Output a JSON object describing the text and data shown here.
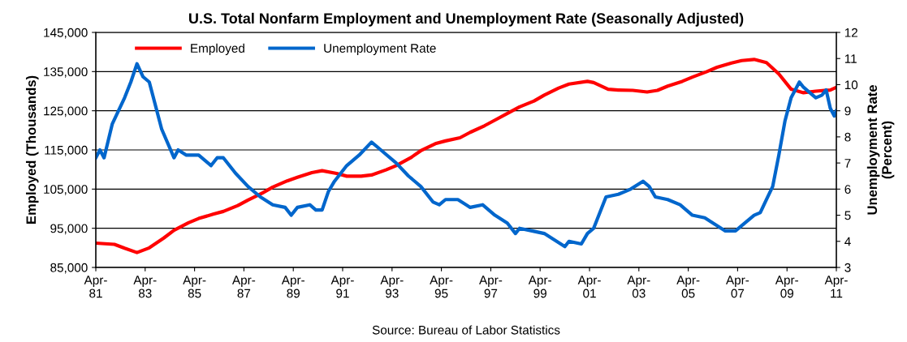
{
  "chart_data": {
    "type": "line",
    "title": "U.S. Total Nonfarm Employment and Unemployment Rate (Seasonally Adjusted)",
    "ylabel": "Employed (Thousands)",
    "y2label": "Unemployment Rate\n(Percent)",
    "annotations": [
      "Source: Bureau of Labor Statistics"
    ],
    "series": [
      {
        "name": "Employed",
        "color": "#ff0000",
        "x": [
          "1981-04",
          "1982-01",
          "1982-06",
          "1982-12",
          "1983-06",
          "1984-01",
          "1984-06",
          "1985-01",
          "1985-06",
          "1986-01",
          "1986-06",
          "1987-01",
          "1987-06",
          "1988-01",
          "1988-06",
          "1989-01",
          "1989-06",
          "1990-01",
          "1990-06",
          "1991-01",
          "1991-06",
          "1992-01",
          "1992-06",
          "1993-01",
          "1993-06",
          "1994-01",
          "1994-06",
          "1995-01",
          "1995-06",
          "1996-01",
          "1996-06",
          "1997-01",
          "1997-06",
          "1998-01",
          "1998-06",
          "1999-01",
          "1999-06",
          "2000-01",
          "2000-06",
          "2001-03",
          "2001-06",
          "2002-01",
          "2002-06",
          "2003-01",
          "2003-08",
          "2004-01",
          "2004-06",
          "2005-01",
          "2005-06",
          "2006-01",
          "2006-06",
          "2007-01",
          "2007-06",
          "2007-12",
          "2008-06",
          "2008-12",
          "2009-06",
          "2009-12",
          "2010-06",
          "2011-01",
          "2011-04"
        ],
        "values": [
          91200,
          90900,
          89900,
          88800,
          90000,
          92500,
          94500,
          96400,
          97500,
          98600,
          99300,
          100800,
          102200,
          104000,
          105500,
          107100,
          108000,
          109200,
          109700,
          109000,
          108300,
          108300,
          108600,
          109900,
          111000,
          113000,
          114800,
          116600,
          117300,
          118100,
          119500,
          121200,
          122600,
          124600,
          126000,
          127500,
          129000,
          130800,
          131800,
          132500,
          132200,
          130500,
          130300,
          130200,
          129800,
          130200,
          131300,
          132500,
          133600,
          135000,
          136100,
          137200,
          137800,
          138100,
          137300,
          134400,
          130500,
          129600,
          130000,
          130300,
          131000
        ]
      },
      {
        "name": "Unemployment Rate",
        "color": "#0066cc",
        "axis": "y2",
        "x": [
          "1981-04",
          "1981-06",
          "1981-08",
          "1981-12",
          "1982-06",
          "1982-09",
          "1982-12",
          "1983-03",
          "1983-06",
          "1983-08",
          "1983-12",
          "1984-06",
          "1984-08",
          "1984-12",
          "1985-06",
          "1985-12",
          "1986-03",
          "1986-06",
          "1986-12",
          "1987-06",
          "1987-12",
          "1988-06",
          "1988-12",
          "1989-03",
          "1989-06",
          "1989-12",
          "1990-03",
          "1990-06",
          "1990-09",
          "1990-12",
          "1991-06",
          "1991-12",
          "1992-06",
          "1992-09",
          "1992-12",
          "1993-06",
          "1993-12",
          "1994-06",
          "1994-12",
          "1995-03",
          "1995-06",
          "1995-12",
          "1996-06",
          "1996-12",
          "1997-06",
          "1997-12",
          "1998-04",
          "1998-06",
          "1998-12",
          "1999-06",
          "1999-12",
          "2000-04",
          "2000-06",
          "2000-12",
          "2001-03",
          "2001-06",
          "2001-12",
          "2002-06",
          "2002-12",
          "2003-06",
          "2003-09",
          "2003-12",
          "2004-06",
          "2004-12",
          "2005-06",
          "2005-12",
          "2006-06",
          "2006-10",
          "2007-03",
          "2007-06",
          "2007-12",
          "2008-03",
          "2008-06",
          "2008-09",
          "2008-12",
          "2009-03",
          "2009-06",
          "2009-10",
          "2009-12",
          "2010-03",
          "2010-06",
          "2010-09",
          "2010-11",
          "2011-01",
          "2011-03",
          "2011-04"
        ],
        "values": [
          7.2,
          7.5,
          7.2,
          8.5,
          9.5,
          10.1,
          10.8,
          10.3,
          10.1,
          9.5,
          8.3,
          7.2,
          7.5,
          7.3,
          7.3,
          6.9,
          7.2,
          7.2,
          6.6,
          6.1,
          5.7,
          5.4,
          5.3,
          5.0,
          5.3,
          5.4,
          5.2,
          5.2,
          5.9,
          6.3,
          6.9,
          7.3,
          7.8,
          7.6,
          7.4,
          7.0,
          6.5,
          6.1,
          5.5,
          5.4,
          5.6,
          5.6,
          5.3,
          5.4,
          5.0,
          4.7,
          4.3,
          4.5,
          4.4,
          4.3,
          4.0,
          3.8,
          4.0,
          3.9,
          4.3,
          4.5,
          5.7,
          5.8,
          6.0,
          6.3,
          6.1,
          5.7,
          5.6,
          5.4,
          5.0,
          4.9,
          4.6,
          4.4,
          4.4,
          4.6,
          5.0,
          5.1,
          5.6,
          6.1,
          7.3,
          8.6,
          9.5,
          10.1,
          9.9,
          9.7,
          9.5,
          9.6,
          9.8,
          9.1,
          8.8,
          9.0
        ]
      }
    ],
    "xlim": [
      "1981-04",
      "2011-04"
    ],
    "xticks": [
      {
        "value": "1981-04",
        "label": "Apr-\n81"
      },
      {
        "value": "1983-04",
        "label": "Apr-\n83"
      },
      {
        "value": "1985-04",
        "label": "Apr-\n85"
      },
      {
        "value": "1987-04",
        "label": "Apr-\n87"
      },
      {
        "value": "1989-04",
        "label": "Apr-\n89"
      },
      {
        "value": "1991-04",
        "label": "Apr-\n91"
      },
      {
        "value": "1993-04",
        "label": "Apr-\n93"
      },
      {
        "value": "1995-04",
        "label": "Apr-\n95"
      },
      {
        "value": "1997-04",
        "label": "Apr-\n97"
      },
      {
        "value": "1999-04",
        "label": "Apr-\n99"
      },
      {
        "value": "2001-04",
        "label": "Apr-\n01"
      },
      {
        "value": "2003-04",
        "label": "Apr-\n03"
      },
      {
        "value": "2005-04",
        "label": "Apr-\n05"
      },
      {
        "value": "2007-04",
        "label": "Apr-\n07"
      },
      {
        "value": "2009-04",
        "label": "Apr-\n09"
      },
      {
        "value": "2011-04",
        "label": "Apr-\n11"
      }
    ],
    "ylim": [
      85000,
      145000
    ],
    "yticks": [
      {
        "value": 85000,
        "label": "85,000"
      },
      {
        "value": 95000,
        "label": "95,000"
      },
      {
        "value": 105000,
        "label": "105,000"
      },
      {
        "value": 115000,
        "label": "115,000"
      },
      {
        "value": 125000,
        "label": "125,000"
      },
      {
        "value": 135000,
        "label": "135,000"
      },
      {
        "value": 145000,
        "label": "145,000"
      }
    ],
    "y2lim": [
      3,
      12
    ],
    "y2ticks": [
      3,
      4,
      5,
      6,
      7,
      8,
      9,
      10,
      11,
      12
    ],
    "grid": "y",
    "legend": "top left",
    "marker": "none",
    "line_style": "solid"
  }
}
